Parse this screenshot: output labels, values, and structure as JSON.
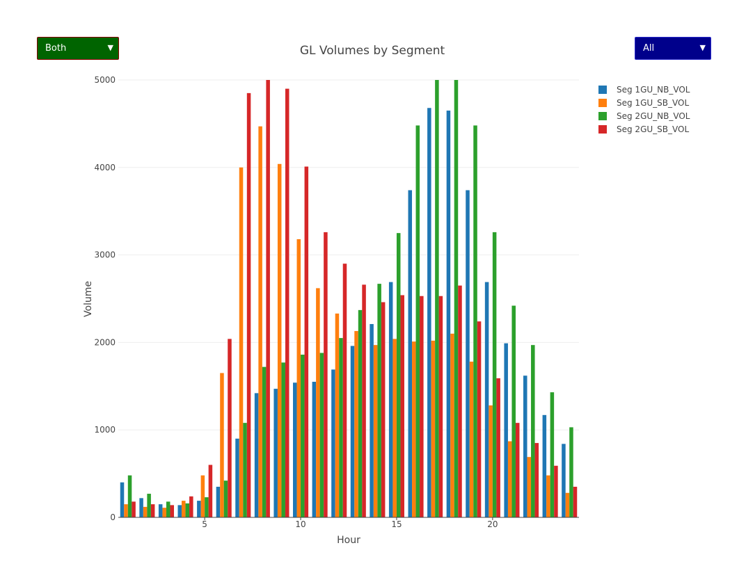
{
  "controls": {
    "left_dropdown": {
      "label": "Both",
      "color": "#006400"
    },
    "right_dropdown": {
      "label": "All",
      "color": "#00008b"
    },
    "arrow": "▼"
  },
  "chart_data": {
    "type": "bar",
    "title": "GL Volumes by Segment",
    "xlabel": "Hour",
    "ylabel": "Volume",
    "x": [
      1,
      2,
      3,
      4,
      5,
      6,
      7,
      8,
      9,
      10,
      11,
      12,
      13,
      14,
      15,
      16,
      17,
      18,
      19,
      20,
      21,
      22,
      23,
      24
    ],
    "xlim": [
      0.5,
      24.5
    ],
    "ylim": [
      0,
      5000
    ],
    "xticks": [
      5,
      10,
      15,
      20
    ],
    "yticks": [
      0,
      1000,
      2000,
      3000,
      4000,
      5000
    ],
    "grid": true,
    "legend_position": "top-right",
    "series": [
      {
        "name": "Seg 1GU_NB_VOL",
        "color": "#1f77b4",
        "values": [
          400,
          220,
          150,
          140,
          190,
          350,
          900,
          1420,
          1470,
          1540,
          1550,
          1690,
          1960,
          2210,
          2690,
          3740,
          4680,
          4650,
          3740,
          2690,
          1990,
          1620,
          1170,
          840
        ]
      },
      {
        "name": "Seg 1GU_SB_VOL",
        "color": "#ff7f0e",
        "values": [
          150,
          120,
          110,
          190,
          480,
          1650,
          4000,
          4470,
          4040,
          3180,
          2620,
          2330,
          2130,
          1970,
          2040,
          2010,
          2020,
          2100,
          1780,
          1280,
          870,
          690,
          480,
          280
        ]
      },
      {
        "name": "Seg 2GU_NB_VOL",
        "color": "#2ca02c",
        "values": [
          480,
          270,
          180,
          160,
          230,
          420,
          1080,
          1720,
          1770,
          1860,
          1880,
          2050,
          2370,
          2670,
          3250,
          4480,
          5000,
          5000,
          4480,
          3260,
          2420,
          1970,
          1430,
          1030
        ]
      },
      {
        "name": "Seg 2GU_SB_VOL",
        "color": "#d62728",
        "values": [
          180,
          150,
          140,
          240,
          600,
          2040,
          4850,
          5000,
          4900,
          4010,
          3260,
          2900,
          2660,
          2460,
          2540,
          2530,
          2530,
          2650,
          2240,
          1590,
          1080,
          850,
          590,
          350
        ]
      }
    ]
  }
}
